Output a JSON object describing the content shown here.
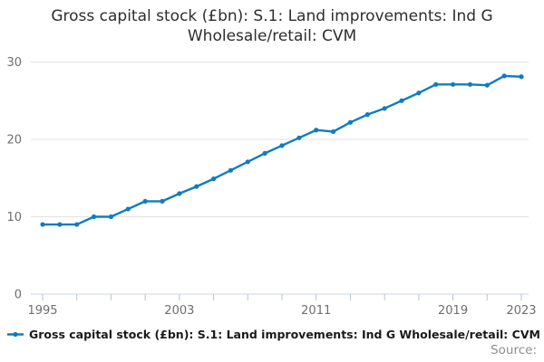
{
  "title": {
    "text": "Gross capital stock (£bn): S.1: Land improvements: Ind G Wholesale/retail: CVM"
  },
  "legend": {
    "label": "Gross capital stock (£bn): S.1: Land improvements: Ind G Wholesale/retail: CVM"
  },
  "source": {
    "label": "Source:"
  },
  "chart_data": {
    "type": "line",
    "title": "Gross capital stock (£bn): S.1: Land improvements: Ind G Wholesale/retail: CVM",
    "x": [
      1995,
      1996,
      1997,
      1998,
      1999,
      2000,
      2001,
      2002,
      2003,
      2004,
      2005,
      2006,
      2007,
      2008,
      2009,
      2010,
      2011,
      2012,
      2013,
      2014,
      2015,
      2016,
      2017,
      2018,
      2019,
      2020,
      2021,
      2022,
      2023
    ],
    "series": [
      {
        "name": "Gross capital stock (£bn): S.1: Land improvements: Ind G Wholesale/retail: CVM",
        "values": [
          9,
          9,
          9,
          10,
          10,
          11,
          12,
          12,
          13,
          13.9,
          14.9,
          16,
          17.1,
          18.2,
          19.2,
          20.2,
          21.2,
          21,
          22.2,
          23.2,
          24,
          25,
          26,
          27.1,
          27.1,
          27.1,
          27,
          28.2,
          28.1
        ]
      }
    ],
    "xlabel": "",
    "ylabel": "",
    "ylim": [
      0,
      30
    ],
    "yticks": [
      0,
      10,
      20,
      30
    ],
    "xtick_labels": [
      1995,
      2003,
      2011,
      2019,
      2023
    ],
    "xtick_interval": 2,
    "grid": true,
    "legend_position": "bottom-left",
    "colors": {
      "line": "#0f7cc0",
      "grid": "#e2e2e2",
      "axis_line": "#cfd6dc",
      "tick": "#b7c6d1",
      "axis_text": "#6e6e6e",
      "title_text": "#2d2d2d"
    }
  }
}
